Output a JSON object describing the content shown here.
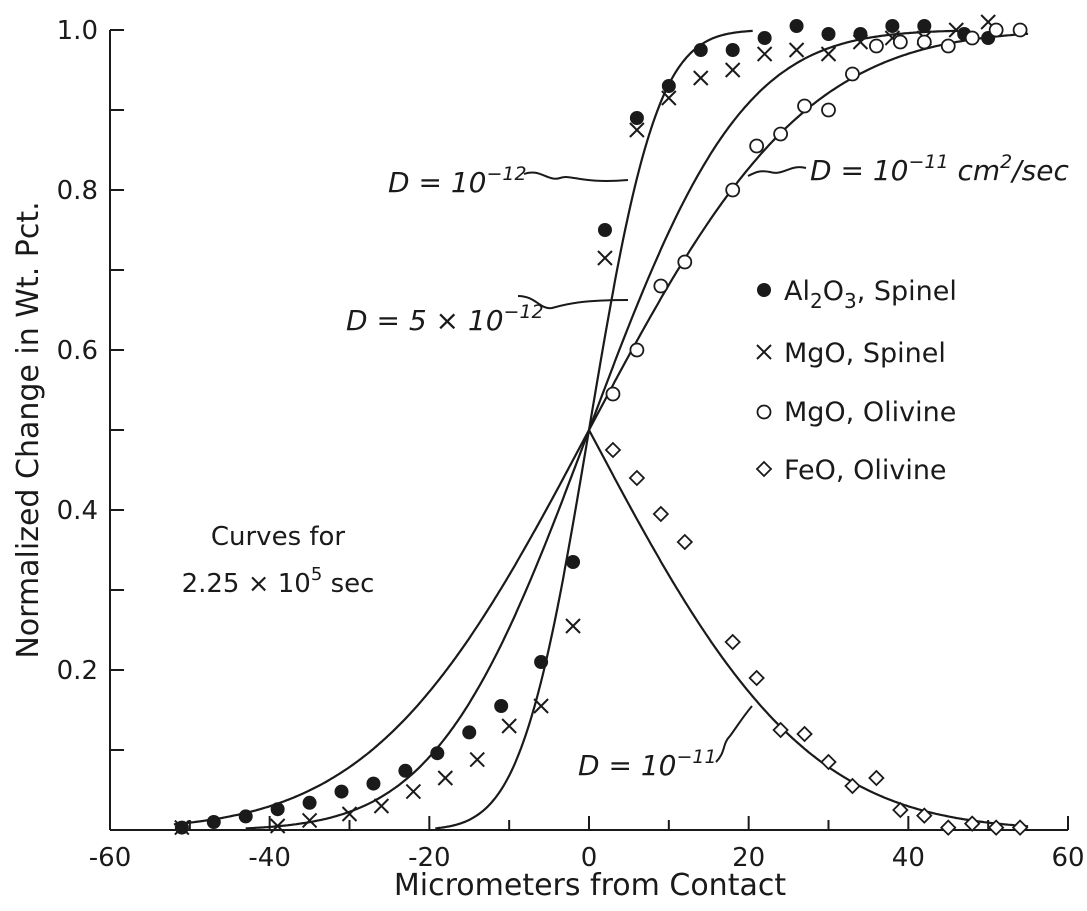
{
  "chart_data": {
    "type": "scatter",
    "xlabel": "Micrometers from Contact",
    "ylabel": "Normalized Change in Wt. Pct.",
    "xlim": [
      -60,
      60
    ],
    "ylim": [
      0,
      1.0
    ],
    "x_ticks": [
      "-60",
      "-40",
      "-20",
      "0",
      "20",
      "40",
      "60"
    ],
    "y_ticks": [
      "0.2",
      "0.4",
      "0.6",
      "0.8",
      "1.0"
    ],
    "grid": false,
    "legend_position": "right",
    "legend": [
      {
        "marker": "filled-circle",
        "text_main": "Al",
        "sub1": "2",
        "mid": "O",
        "sub2": "3",
        "tail": ", Spinel"
      },
      {
        "marker": "x",
        "text": "MgO, Spinel"
      },
      {
        "marker": "open-circle",
        "text": "MgO, Olivine"
      },
      {
        "marker": "diamond",
        "text": "FeO, Olivine"
      }
    ],
    "series": [
      {
        "name": "Al2O3, Spinel",
        "marker": "filled-circle",
        "x": [
          -51,
          -47,
          -43,
          -39,
          -35,
          -31,
          -27,
          -23,
          -19,
          -15,
          -11,
          -6,
          -2,
          2,
          6,
          10,
          14,
          18,
          22,
          26,
          30,
          34,
          38,
          42,
          47,
          50
        ],
        "y": [
          0.003,
          0.01,
          0.017,
          0.026,
          0.034,
          0.048,
          0.058,
          0.074,
          0.096,
          0.122,
          0.155,
          0.21,
          0.335,
          0.75,
          0.89,
          0.93,
          0.975,
          0.975,
          0.99,
          1.005,
          0.995,
          0.995,
          1.005,
          1.005,
          0.995,
          0.99
        ]
      },
      {
        "name": "MgO, Spinel",
        "marker": "x",
        "x": [
          -51,
          -39,
          -35,
          -30,
          -26,
          -22,
          -18,
          -14,
          -10,
          -6,
          -2,
          2,
          6,
          10,
          14,
          18,
          22,
          26,
          30,
          34,
          38,
          42,
          46,
          50
        ],
        "y": [
          0.003,
          0.005,
          0.012,
          0.02,
          0.03,
          0.048,
          0.065,
          0.088,
          0.13,
          0.155,
          0.255,
          0.715,
          0.875,
          0.915,
          0.94,
          0.95,
          0.97,
          0.975,
          0.97,
          0.985,
          0.99,
          0.99,
          1.0,
          1.01
        ]
      },
      {
        "name": "MgO, Olivine",
        "marker": "open-circle",
        "x": [
          3,
          6,
          9,
          12,
          18,
          21,
          24,
          27,
          30,
          33,
          36,
          39,
          42,
          45,
          48,
          51,
          54
        ],
        "y": [
          0.545,
          0.6,
          0.68,
          0.71,
          0.8,
          0.855,
          0.87,
          0.905,
          0.9,
          0.945,
          0.98,
          0.985,
          0.985,
          0.98,
          0.99,
          1.0,
          1.0
        ]
      },
      {
        "name": "FeO, Olivine",
        "marker": "diamond",
        "x": [
          3,
          6,
          9,
          12,
          18,
          21,
          24,
          27,
          30,
          33,
          36,
          39,
          42,
          45,
          48,
          51,
          54
        ],
        "y": [
          0.475,
          0.44,
          0.395,
          0.36,
          0.235,
          0.19,
          0.125,
          0.12,
          0.085,
          0.055,
          0.065,
          0.025,
          0.018,
          0.003,
          0.008,
          0.003,
          0.003
        ]
      }
    ],
    "curves": [
      {
        "name": "D=10^-12",
        "D": 1e-12,
        "direction": "up"
      },
      {
        "name": "D=5x10^-12",
        "D": 5e-12,
        "direction": "up"
      },
      {
        "name": "D=10^-11 cm2/sec",
        "D": 1e-11,
        "direction": "up"
      },
      {
        "name": "D=10^-11 (FeO)",
        "D": 1e-11,
        "direction": "down"
      }
    ],
    "time_sec": 225000,
    "annotations": {
      "d1e12": {
        "pre": "D = 10",
        "sup": "−12"
      },
      "d5e12": {
        "pre": "D = 5 × 10",
        "sup": "−12"
      },
      "d1e11_top": {
        "pre": "D = 10",
        "sup": "−11",
        "post": " cm",
        "sup2": "2",
        "post2": "/sec"
      },
      "d1e11_low": {
        "pre": "D = 10",
        "sup": "−11"
      },
      "curves_line1": "Curves for",
      "curves_pre": "2.25 × 10",
      "curves_sup": "5",
      "curves_post": " sec"
    }
  }
}
